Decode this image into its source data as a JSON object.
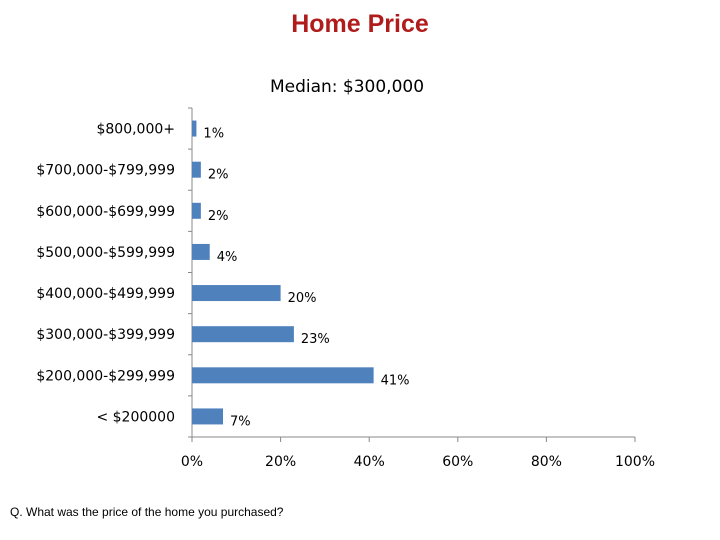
{
  "page": {
    "title": "Home Price",
    "footnote": "Q. What was the price of the home you purchased?"
  },
  "chart_data": {
    "type": "bar",
    "orientation": "horizontal",
    "subtitle": "Median: $300,000",
    "categories": [
      "$800,000+",
      "$700,000-$799,999",
      "$600,000-$699,999",
      "$500,000-$599,999",
      "$400,000-$499,999",
      "$300,000-$399,999",
      "$200,000-$299,999",
      "< $200000"
    ],
    "values": [
      1,
      2,
      2,
      4,
      20,
      23,
      41,
      7
    ],
    "value_labels": [
      "1%",
      "2%",
      "2%",
      "4%",
      "20%",
      "23%",
      "41%",
      "7%"
    ],
    "xlim": [
      0,
      100
    ],
    "x_ticks": [
      0,
      20,
      40,
      60,
      80,
      100
    ],
    "x_tick_labels": [
      "0%",
      "20%",
      "40%",
      "60%",
      "80%",
      "100%"
    ],
    "bar_color": "#4f81bd",
    "grid": false
  }
}
